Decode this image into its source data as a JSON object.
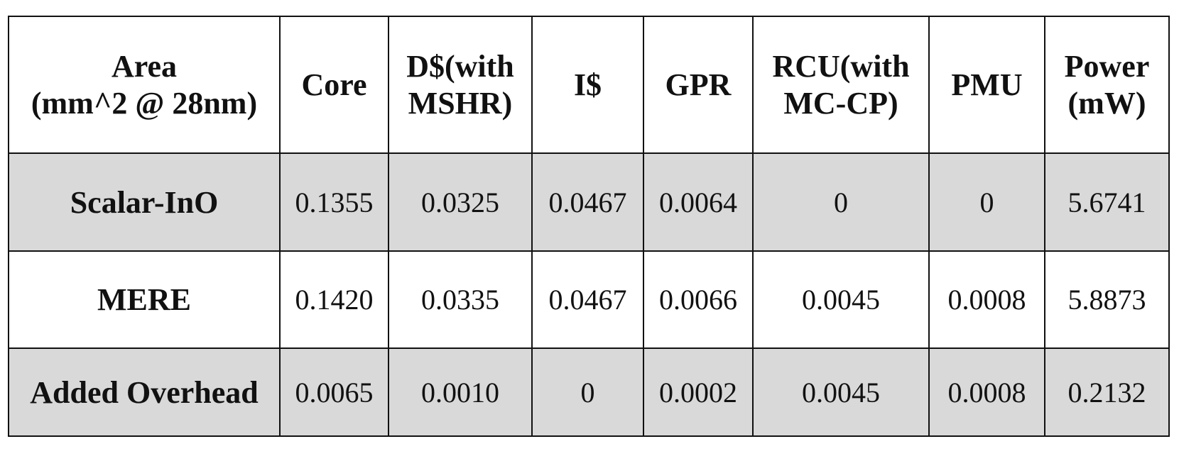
{
  "table": {
    "header": [
      [
        "Area",
        "(mm^2 @ 28nm)"
      ],
      [
        "Core"
      ],
      [
        "D$(with",
        "MSHR)"
      ],
      [
        "I$"
      ],
      [
        "GPR"
      ],
      [
        "RCU(with",
        "MC-CP)"
      ],
      [
        "PMU"
      ],
      [
        "Power",
        "(mW)"
      ]
    ],
    "rows": [
      [
        "Scalar-InO",
        "0.1355",
        "0.0325",
        "0.0467",
        "0.0064",
        "0",
        "0",
        "5.6741"
      ],
      [
        "MERE",
        "0.1420",
        "0.0335",
        "0.0467",
        "0.0066",
        "0.0045",
        "0.0008",
        "5.8873"
      ],
      [
        "Added Overhead",
        "0.0065",
        "0.0010",
        "0",
        "0.0002",
        "0.0045",
        "0.0008",
        "0.2132"
      ]
    ]
  }
}
